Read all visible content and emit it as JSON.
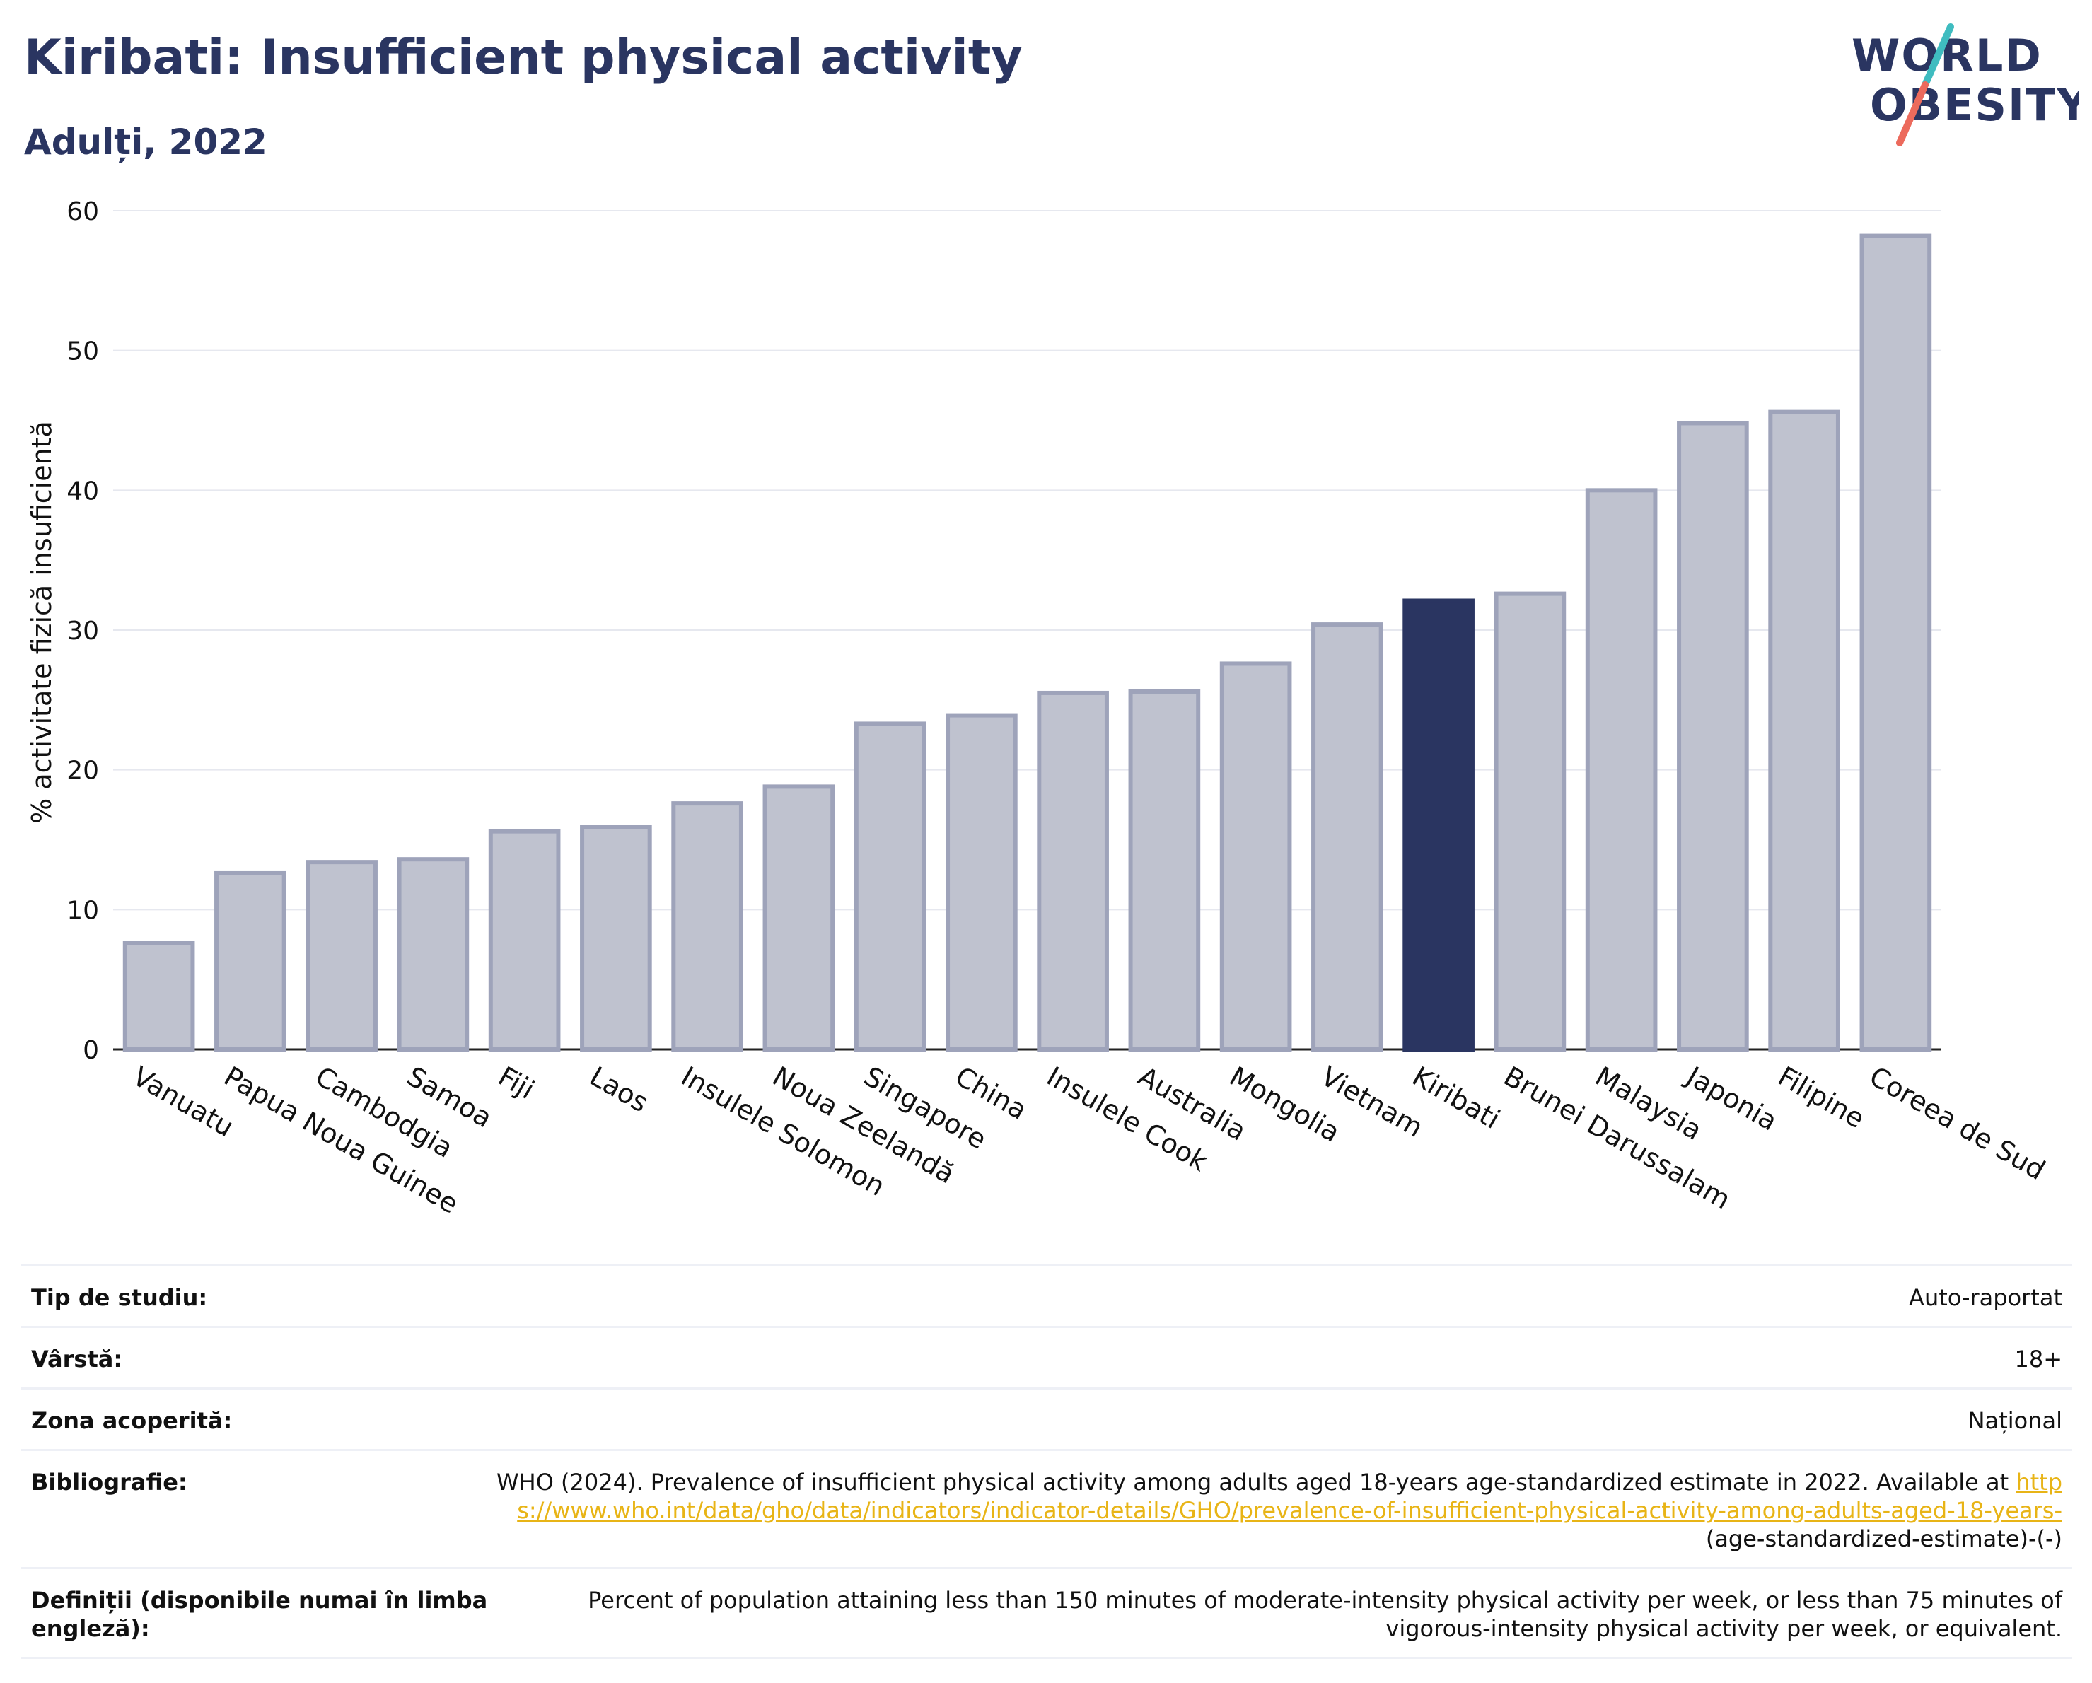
{
  "header": {
    "title": "Kiribati: Insufficient physical activity",
    "subtitle": "Adulți, 2022"
  },
  "logo": {
    "line1": "WORLD",
    "line2": "OBESITY"
  },
  "colors": {
    "highlight": "#2a3561",
    "bar_fill": "#bfc2cf",
    "bar_stroke": "#9ea3ba",
    "grid": "#e6e8ef",
    "accent_teal": "#3fbcc0",
    "accent_coral": "#ec6a5c",
    "link": "#e8b416"
  },
  "chart_data": {
    "type": "bar",
    "ylabel": "% activitate fizică insuficientă",
    "ylim": [
      0,
      60
    ],
    "yticks": [
      0,
      10,
      20,
      30,
      40,
      50,
      60
    ],
    "grid": true,
    "highlight": "Kiribati",
    "categories": [
      "Vanuatu",
      "Papua Noua Guinee",
      "Cambodgia",
      "Samoa",
      "Fiji",
      "Laos",
      "Insulele Solomon",
      "Noua Zeelandă",
      "Singapore",
      "China",
      "Insulele Cook",
      "Australia",
      "Mongolia",
      "Vietnam",
      "Kiribati",
      "Brunei Darussalam",
      "Malaysia",
      "Japonia",
      "Filipine",
      "Coreea de Sud"
    ],
    "values": [
      7.6,
      12.6,
      13.4,
      13.6,
      15.6,
      15.9,
      17.6,
      18.8,
      23.3,
      23.9,
      25.5,
      25.6,
      27.6,
      30.4,
      32.1,
      32.6,
      40.0,
      44.8,
      45.6,
      58.2
    ]
  },
  "info": {
    "study_type_label": "Tip de studiu:",
    "study_type_value": "Auto-raportat",
    "age_label": "Vârstă:",
    "age_value": "18+",
    "area_label": "Zona acoperită:",
    "area_value": "Național",
    "bibliography_label": "Bibliografie:",
    "bibliography_text": "WHO (2024). Prevalence of insufficient physical activity among adults aged 18-years age-standardized estimate in 2022. Available at",
    "bibliography_link": "https://www.who.int/data/gho/data/indicators/indicator-details/GHO/prevalence-of-insufficient-physical-activity-among-adults-aged-18-years-",
    "bibliography_suffix": "(age-standardized-estimate)-(-)",
    "definitions_label": "Definiții (disponibile numai în limba engleză):",
    "definitions_value": "Percent of population attaining less than 150 minutes of moderate-intensity physical activity per week, or less than 75 minutes of vigorous-intensity physical activity per week, or equivalent."
  }
}
